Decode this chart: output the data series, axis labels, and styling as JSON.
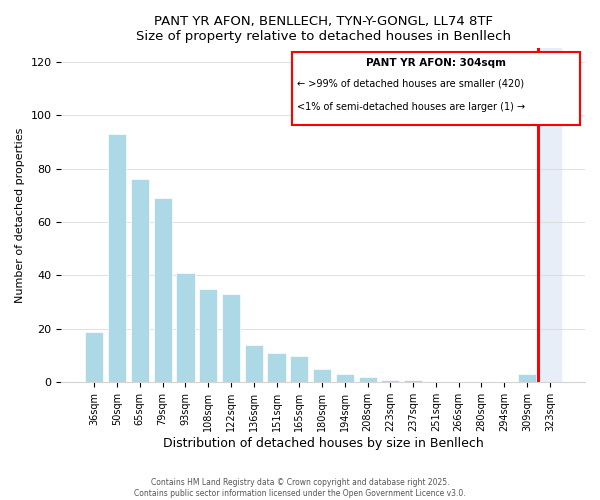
{
  "title": "PANT YR AFON, BENLLECH, TYN-Y-GONGL, LL74 8TF",
  "subtitle": "Size of property relative to detached houses in Benllech",
  "xlabel": "Distribution of detached houses by size in Benllech",
  "ylabel": "Number of detached properties",
  "categories": [
    "36sqm",
    "50sqm",
    "65sqm",
    "79sqm",
    "93sqm",
    "108sqm",
    "122sqm",
    "136sqm",
    "151sqm",
    "165sqm",
    "180sqm",
    "194sqm",
    "208sqm",
    "223sqm",
    "237sqm",
    "251sqm",
    "266sqm",
    "280sqm",
    "294sqm",
    "309sqm",
    "323sqm"
  ],
  "values": [
    19,
    93,
    76,
    69,
    41,
    35,
    33,
    14,
    11,
    10,
    5,
    3,
    2,
    1,
    1,
    0,
    0,
    0,
    0,
    3,
    0
  ],
  "bar_color": "#add8e6",
  "highlight_bg": "#e8eef8",
  "highlight_index": 20,
  "red_line_index": 19,
  "legend_title": "PANT YR AFON: 304sqm",
  "legend_line1": "← >99% of detached houses are smaller (420)",
  "legend_line2": "<1% of semi-detached houses are larger (1) →",
  "ylim": [
    0,
    125
  ],
  "yticks": [
    0,
    20,
    40,
    60,
    80,
    100,
    120
  ],
  "footnote1": "Contains HM Land Registry data © Crown copyright and database right 2025.",
  "footnote2": "Contains public sector information licensed under the Open Government Licence v3.0."
}
